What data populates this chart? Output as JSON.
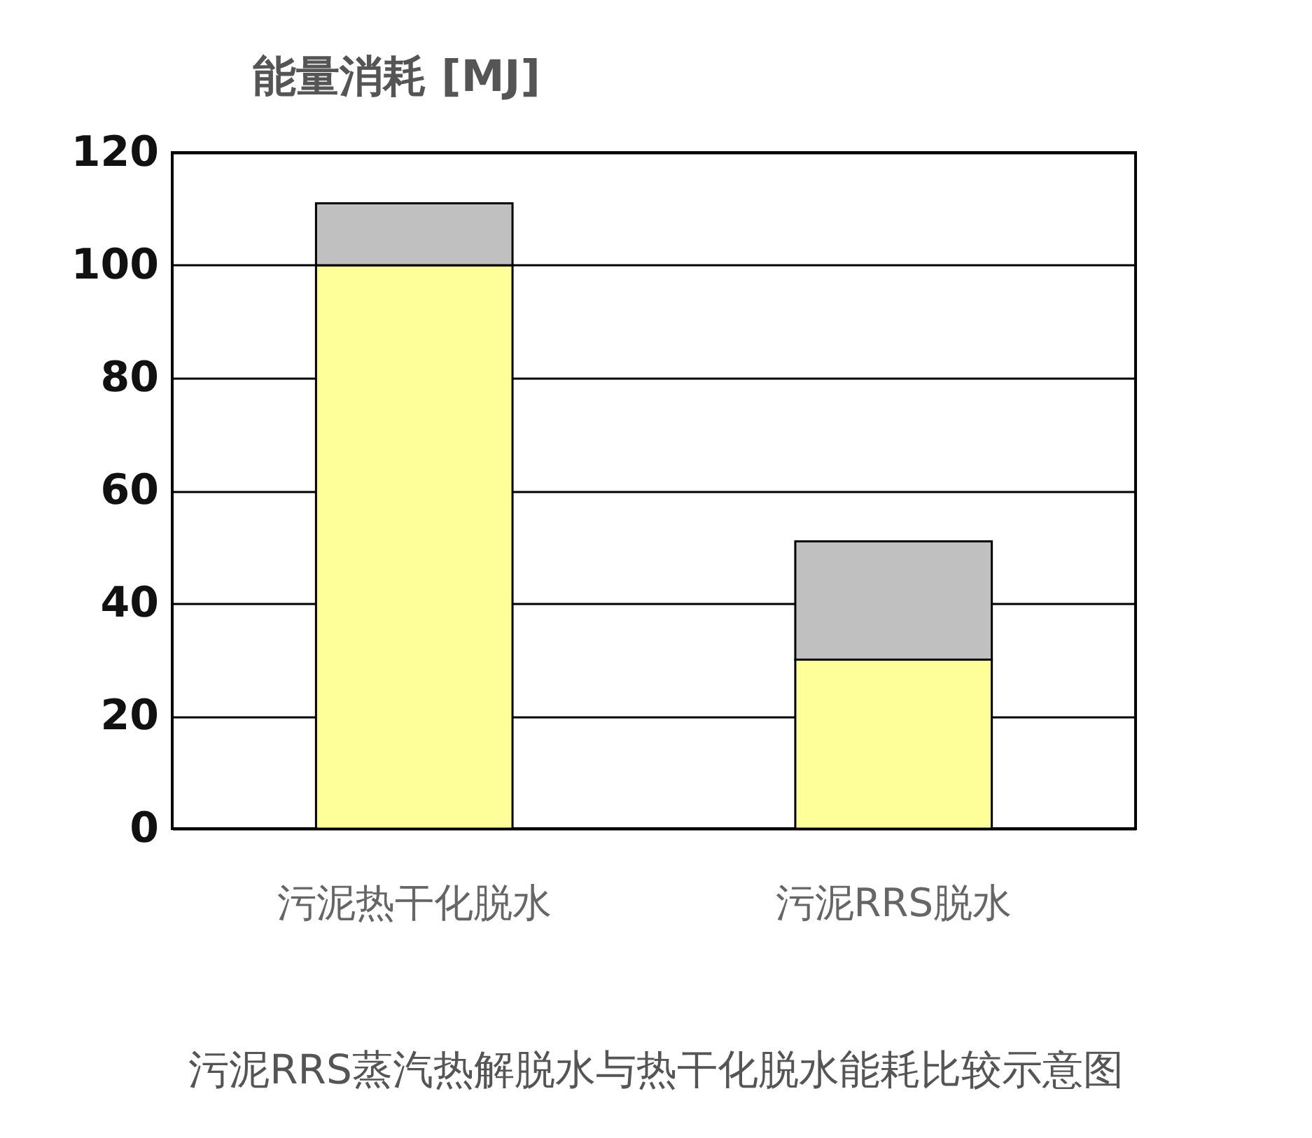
{
  "chart_data": {
    "type": "bar",
    "title": "能量消耗 [MJ]",
    "categories": [
      "污泥热干化脱水",
      "污泥RRS脱水"
    ],
    "stacked": true,
    "series": [
      {
        "color": "#ffff99",
        "values": [
          100,
          30
        ]
      },
      {
        "color": "#c0c0c0",
        "values": [
          11,
          21
        ]
      }
    ],
    "ylim": [
      0,
      120
    ],
    "yticks": [
      0,
      20,
      40,
      60,
      80,
      100,
      120
    ],
    "grid": "y",
    "legend": false,
    "annotations": [
      "污泥RRS蒸汽热解脱水与热干化脱水能耗比较示意图"
    ]
  }
}
